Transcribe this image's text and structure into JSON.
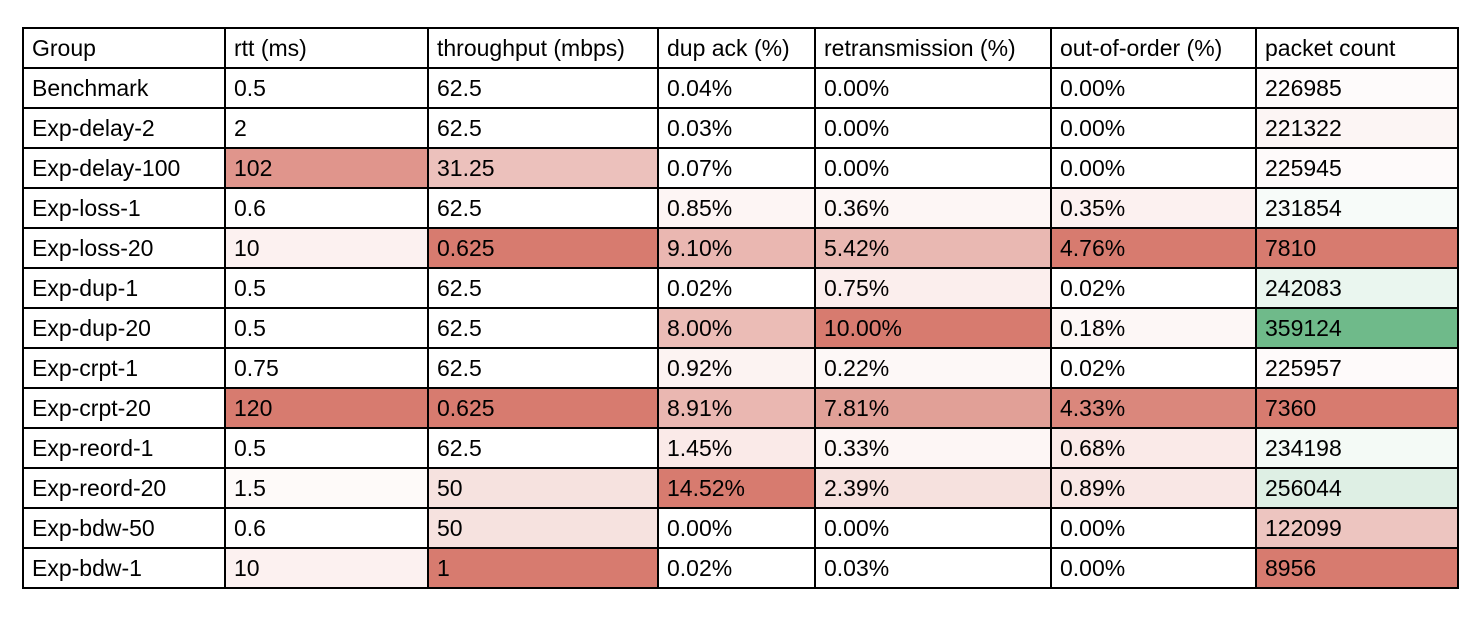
{
  "table": {
    "header": [
      "Group",
      "rtt (ms)",
      "throughput (mbps)",
      "dup ack (%)",
      "retransmission (%)",
      "out-of-order (%)",
      "packet count"
    ],
    "rows": [
      [
        "Benchmark",
        "0.5",
        "62.5",
        "0.04%",
        "0.00%",
        "0.00%",
        "226985"
      ],
      [
        "Exp-delay-2",
        "2",
        "62.5",
        "0.03%",
        "0.00%",
        "0.00%",
        "221322"
      ],
      [
        "Exp-delay-100",
        "102",
        "31.25",
        "0.07%",
        "0.00%",
        "0.00%",
        "225945"
      ],
      [
        "Exp-loss-1",
        "0.6",
        "62.5",
        "0.85%",
        "0.36%",
        "0.35%",
        "231854"
      ],
      [
        "Exp-loss-20",
        "10",
        "0.625",
        "9.10%",
        "5.42%",
        "4.76%",
        "7810"
      ],
      [
        "Exp-dup-1",
        "0.5",
        "62.5",
        "0.02%",
        "0.75%",
        "0.02%",
        "242083"
      ],
      [
        "Exp-dup-20",
        "0.5",
        "62.5",
        "8.00%",
        "10.00%",
        "0.18%",
        "359124"
      ],
      [
        "Exp-crpt-1",
        "0.75",
        "62.5",
        "0.92%",
        "0.22%",
        "0.02%",
        "225957"
      ],
      [
        "Exp-crpt-20",
        "120",
        "0.625",
        "8.91%",
        "7.81%",
        "4.33%",
        "7360"
      ],
      [
        "Exp-reord-1",
        "0.5",
        "62.5",
        "1.45%",
        "0.33%",
        "0.68%",
        "234198"
      ],
      [
        "Exp-reord-20",
        "1.5",
        "50",
        "14.52%",
        "2.39%",
        "0.89%",
        "256044"
      ],
      [
        "Exp-bdw-50",
        "0.6",
        "50",
        "0.00%",
        "0.00%",
        "0.00%",
        "122099"
      ],
      [
        "Exp-bdw-1",
        "10",
        "1",
        "0.02%",
        "0.03%",
        "0.00%",
        "8956"
      ]
    ],
    "colors": [
      [
        null,
        null,
        null,
        null,
        null,
        null,
        "#fefbfb"
      ],
      [
        null,
        null,
        null,
        null,
        null,
        null,
        "#fcf5f4"
      ],
      [
        null,
        "#e0958c",
        "#ecc1bc",
        null,
        null,
        null,
        "#fefafa"
      ],
      [
        null,
        null,
        null,
        "#fdf5f4",
        "#fdf6f5",
        "#fcf1f0",
        "#f7fbf9"
      ],
      [
        null,
        "#fcf1f0",
        "#d77b6f",
        "#eab7b1",
        "#e9b8b2",
        "#d77b6f",
        "#d77b6f"
      ],
      [
        null,
        null,
        null,
        null,
        "#fbeeed",
        null,
        "#eaf6ef"
      ],
      [
        null,
        null,
        null,
        "#ebbcb6",
        "#d77b6f",
        "#fdf7f6",
        "#6fba8a"
      ],
      [
        null,
        null,
        null,
        "#fcf3f2",
        "#fdf8f7",
        null,
        "#fefafa"
      ],
      [
        null,
        "#d77b6f",
        "#d77b6f",
        "#eab7b1",
        "#e1a097",
        "#da877c",
        "#d77b6f"
      ],
      [
        null,
        null,
        null,
        "#faeae8",
        "#fdf6f5",
        "#faeae8",
        "#f4faf6"
      ],
      [
        null,
        "#fefaf9",
        "#f6e2df",
        "#d77b6f",
        "#f6e1de",
        "#f9e7e5",
        "#deefe4"
      ],
      [
        null,
        null,
        "#f6e2df",
        null,
        null,
        null,
        "#edc5c0"
      ],
      [
        null,
        "#fcf1f0",
        "#d77b6f",
        null,
        null,
        null,
        "#d77b6f"
      ]
    ]
  }
}
